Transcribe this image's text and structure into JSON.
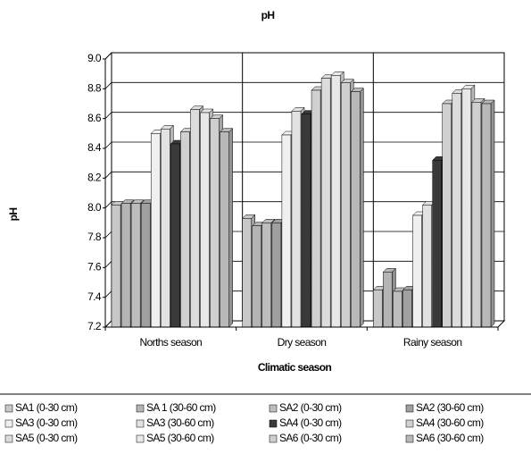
{
  "chart_data": {
    "type": "bar",
    "title": "pH",
    "x_label": "Climatic season",
    "y_label": "pH",
    "categories": [
      "Norths season",
      "Dry season",
      "Rainy season"
    ],
    "ylim": [
      7.2,
      9.0
    ],
    "yticks": [
      7.2,
      7.4,
      7.6,
      7.8,
      {
        "value": 8,
        "label": "8.0"
      },
      8.2,
      8.4,
      8.6,
      8.8,
      {
        "value": 9,
        "label": "9.0"
      }
    ],
    "grid": true,
    "series": [
      {
        "name": "SA1 (0-30 cm)",
        "color": "#c8c8c8",
        "values": [
          8.02,
          7.93,
          7.45
        ]
      },
      {
        "name": "SA 1 (30-60 cm)",
        "color": "#b4b4b4",
        "values": [
          8.03,
          7.88,
          7.57
        ]
      },
      {
        "name": "SA2 (0-30 cm)",
        "color": "#bdbdbd",
        "values": [
          8.03,
          7.9,
          7.44
        ]
      },
      {
        "name": "SA2 (30-60 cm)",
        "color": "#a0a0a0",
        "values": [
          8.03,
          7.9,
          7.45
        ]
      },
      {
        "name": "SA3 (0-30 cm)",
        "color": "#f0f0f0",
        "values": [
          8.5,
          8.49,
          7.95
        ]
      },
      {
        "name": "SA3 (30-60 cm)",
        "color": "#e2e2e2",
        "values": [
          8.53,
          8.65,
          8.02
        ]
      },
      {
        "name": "SA4 (0-30 cm)",
        "color": "#3a3a3a",
        "values": [
          8.43,
          8.63,
          8.32
        ]
      },
      {
        "name": "SA4 (30-60 cm)",
        "color": "#d0d0d0",
        "values": [
          8.51,
          8.79,
          8.7
        ]
      },
      {
        "name": "SA5 (0-30 cm)",
        "color": "#dcdcdc",
        "values": [
          8.66,
          8.87,
          8.77
        ]
      },
      {
        "name": "SA5 (30-60 cm)",
        "color": "#e8e8e8",
        "values": [
          8.64,
          8.89,
          8.8
        ]
      },
      {
        "name": "SA6 (0-30 cm)",
        "color": "#cfcfcf",
        "values": [
          8.6,
          8.84,
          8.71
        ]
      },
      {
        "name": "SA6 (30-60 cm)",
        "color": "#b8b8b8",
        "values": [
          8.51,
          8.78,
          8.7
        ]
      }
    ]
  }
}
